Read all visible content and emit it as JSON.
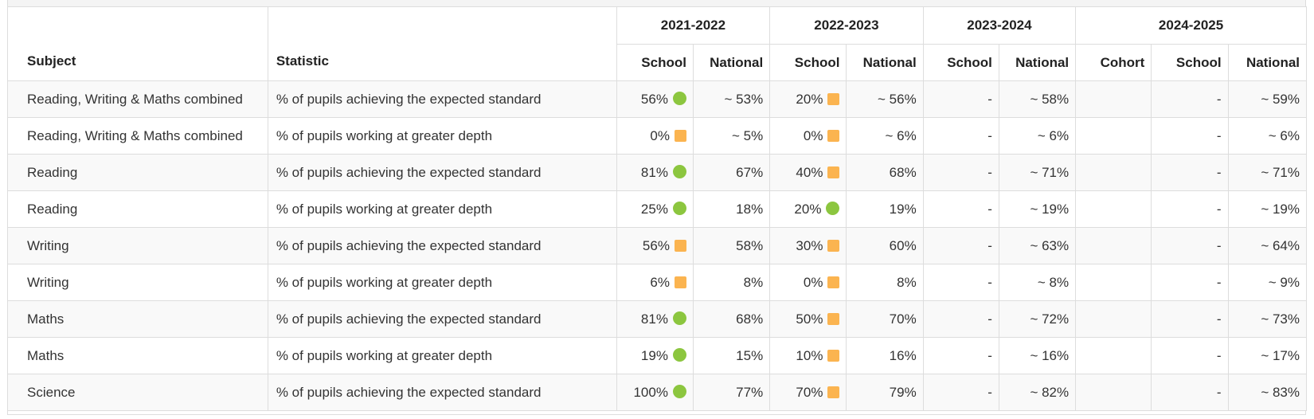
{
  "colors": {
    "above": "#8cc63f",
    "below": "#fbb450"
  },
  "headers": {
    "subject": "Subject",
    "statistic": "Statistic",
    "years": [
      "2021-2022",
      "2022-2023",
      "2023-2024",
      "2024-2025"
    ],
    "school": "School",
    "national": "National",
    "cohort": "Cohort"
  },
  "rows": [
    {
      "subject": "Reading, Writing & Maths combined",
      "statistic": "% of pupils achieving the expected standard",
      "y21_school": "56%",
      "y21_school_icon": "green-circle-icon",
      "y21_national": "~ 53%",
      "y22_school": "20%",
      "y22_school_icon": "orange-square-icon",
      "y22_national": "~ 56%",
      "y23_school": "-",
      "y23_national": "~ 58%",
      "y24_cohort": "",
      "y24_school": "-",
      "y24_national": "~ 59%"
    },
    {
      "subject": "Reading, Writing & Maths combined",
      "statistic": "% of pupils working at greater depth",
      "y21_school": "0%",
      "y21_school_icon": "orange-square-icon",
      "y21_national": "~ 5%",
      "y22_school": "0%",
      "y22_school_icon": "orange-square-icon",
      "y22_national": "~ 6%",
      "y23_school": "-",
      "y23_national": "~ 6%",
      "y24_cohort": "",
      "y24_school": "-",
      "y24_national": "~ 6%"
    },
    {
      "subject": "Reading",
      "statistic": "% of pupils achieving the expected standard",
      "y21_school": "81%",
      "y21_school_icon": "green-circle-icon",
      "y21_national": "67%",
      "y22_school": "40%",
      "y22_school_icon": "orange-square-icon",
      "y22_national": "68%",
      "y23_school": "-",
      "y23_national": "~ 71%",
      "y24_cohort": "",
      "y24_school": "-",
      "y24_national": "~ 71%"
    },
    {
      "subject": "Reading",
      "statistic": "% of pupils working at greater depth",
      "y21_school": "25%",
      "y21_school_icon": "green-circle-icon",
      "y21_national": "18%",
      "y22_school": "20%",
      "y22_school_icon": "green-circle-icon",
      "y22_national": "19%",
      "y23_school": "-",
      "y23_national": "~ 19%",
      "y24_cohort": "",
      "y24_school": "-",
      "y24_national": "~ 19%"
    },
    {
      "subject": "Writing",
      "statistic": "% of pupils achieving the expected standard",
      "y21_school": "56%",
      "y21_school_icon": "orange-square-icon",
      "y21_national": "58%",
      "y22_school": "30%",
      "y22_school_icon": "orange-square-icon",
      "y22_national": "60%",
      "y23_school": "-",
      "y23_national": "~ 63%",
      "y24_cohort": "",
      "y24_school": "-",
      "y24_national": "~ 64%"
    },
    {
      "subject": "Writing",
      "statistic": "% of pupils working at greater depth",
      "y21_school": "6%",
      "y21_school_icon": "orange-square-icon",
      "y21_national": "8%",
      "y22_school": "0%",
      "y22_school_icon": "orange-square-icon",
      "y22_national": "8%",
      "y23_school": "-",
      "y23_national": "~ 8%",
      "y24_cohort": "",
      "y24_school": "-",
      "y24_national": "~ 9%"
    },
    {
      "subject": "Maths",
      "statistic": "% of pupils achieving the expected standard",
      "y21_school": "81%",
      "y21_school_icon": "green-circle-icon",
      "y21_national": "68%",
      "y22_school": "50%",
      "y22_school_icon": "orange-square-icon",
      "y22_national": "70%",
      "y23_school": "-",
      "y23_national": "~ 72%",
      "y24_cohort": "",
      "y24_school": "-",
      "y24_national": "~ 73%"
    },
    {
      "subject": "Maths",
      "statistic": "% of pupils working at greater depth",
      "y21_school": "19%",
      "y21_school_icon": "green-circle-icon",
      "y21_national": "15%",
      "y22_school": "10%",
      "y22_school_icon": "orange-square-icon",
      "y22_national": "16%",
      "y23_school": "-",
      "y23_national": "~ 16%",
      "y24_cohort": "",
      "y24_school": "-",
      "y24_national": "~ 17%"
    },
    {
      "subject": "Science",
      "statistic": "% of pupils achieving the expected standard",
      "y21_school": "100%",
      "y21_school_icon": "green-circle-icon",
      "y21_national": "77%",
      "y22_school": "70%",
      "y22_school_icon": "orange-square-icon",
      "y22_national": "79%",
      "y23_school": "-",
      "y23_national": "~ 82%",
      "y24_cohort": "",
      "y24_school": "-",
      "y24_national": "~ 83%"
    }
  ]
}
